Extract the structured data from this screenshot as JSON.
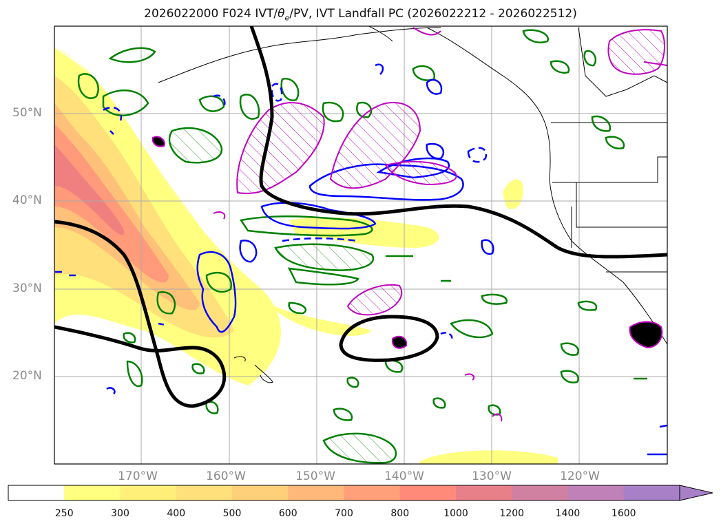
{
  "title": {
    "run": "2026022000 F024 IVT/",
    "theta_symbol": "θ",
    "theta_sub": "e",
    "rest": "/PV, IVT Landfall PC (2026022212 - 2026022512)"
  },
  "lat_labels": [
    "50°N",
    "40°N",
    "30°N",
    "20°N"
  ],
  "lon_labels": [
    "170°W",
    "160°W",
    "150°W",
    "140°W",
    "130°W",
    "120°W"
  ],
  "colorbar": {
    "ticks": [
      "250",
      "300",
      "400",
      "500",
      "600",
      "700",
      "800",
      "1000",
      "1200",
      "1400",
      "1600"
    ],
    "colors": [
      "#ffffff",
      "#ffff80",
      "#fff07a",
      "#ffe07a",
      "#ffd07a",
      "#ffb77a",
      "#ffa07a",
      "#ff8a7a",
      "#e8808a",
      "#d080a0",
      "#c080b8",
      "#a880c8"
    ],
    "extend": "max"
  },
  "map": {
    "extent": {
      "lon_min": -180,
      "lon_max": -110,
      "lat_min": 10,
      "lat_max": 60
    },
    "grid_lons": [
      -170,
      -160,
      -150,
      -140,
      -130,
      -120
    ],
    "grid_lats": [
      20,
      30,
      40,
      50
    ],
    "contour_colors": {
      "theta_e": "#008000",
      "pv_neg": "#0000ff",
      "landfall_pc": "#c000c0",
      "ivt_black": "#000000"
    }
  }
}
